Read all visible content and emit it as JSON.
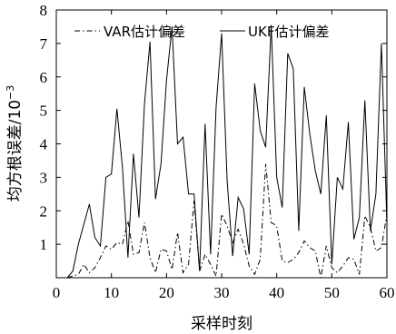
{
  "chart_data": {
    "type": "line",
    "xlabel": "采样时刻",
    "ylabel": "均方根误差/10",
    "ylabel_exponent": "−3",
    "xlim": [
      0,
      60
    ],
    "ylim": [
      0,
      8
    ],
    "xticks": [
      0,
      10,
      20,
      30,
      40,
      50,
      60
    ],
    "yticks": [
      1,
      2,
      3,
      4,
      5,
      6,
      7,
      8
    ],
    "grid": false,
    "legend_position": "top",
    "series": [
      {
        "name": "VAR估计偏差",
        "style": "dash-dot",
        "x": [
          2,
          3,
          4,
          5,
          6,
          7,
          8,
          9,
          10,
          11,
          12,
          13,
          14,
          15,
          16,
          17,
          18,
          19,
          20,
          21,
          22,
          23,
          24,
          25,
          26,
          27,
          28,
          29,
          30,
          31,
          32,
          33,
          34,
          35,
          36,
          37,
          38,
          39,
          40,
          41,
          42,
          43,
          44,
          45,
          46,
          47,
          48,
          49,
          50,
          51,
          52,
          53,
          54,
          55,
          56,
          57,
          58,
          59,
          60
        ],
        "values": [
          0.0,
          0.05,
          0.1,
          0.4,
          0.15,
          0.3,
          0.6,
          0.95,
          0.85,
          1.05,
          1.0,
          1.7,
          0.7,
          0.75,
          1.65,
          0.6,
          0.15,
          0.85,
          0.8,
          0.25,
          1.35,
          0.15,
          0.4,
          2.3,
          0.2,
          0.7,
          0.4,
          0.05,
          1.9,
          1.55,
          1.05,
          1.45,
          1.0,
          0.35,
          0.1,
          0.55,
          3.4,
          1.65,
          1.55,
          0.5,
          0.45,
          0.55,
          0.75,
          1.1,
          0.9,
          0.8,
          0.0,
          0.95,
          0.3,
          0.15,
          0.35,
          0.6,
          0.55,
          0.1,
          1.85,
          1.5,
          0.8,
          0.9,
          1.9
        ]
      },
      {
        "name": "UKF估计偏差",
        "style": "solid",
        "x": [
          2,
          3,
          4,
          5,
          6,
          7,
          8,
          9,
          10,
          11,
          12,
          13,
          14,
          15,
          16,
          17,
          18,
          19,
          20,
          21,
          22,
          23,
          24,
          25,
          26,
          27,
          28,
          29,
          30,
          31,
          32,
          33,
          34,
          35,
          36,
          37,
          38,
          39,
          40,
          41,
          42,
          43,
          44,
          45,
          46,
          47,
          48,
          49,
          50,
          51,
          52,
          53,
          54,
          55,
          56,
          57,
          58,
          59,
          60
        ],
        "values": [
          0.0,
          0.2,
          1.0,
          1.6,
          2.2,
          1.2,
          0.95,
          3.0,
          3.1,
          5.05,
          3.3,
          0.6,
          3.7,
          1.8,
          5.2,
          7.05,
          2.35,
          3.4,
          5.9,
          7.5,
          4.0,
          4.2,
          2.5,
          2.5,
          0.2,
          4.6,
          0.7,
          5.1,
          7.3,
          2.9,
          0.65,
          2.4,
          2.05,
          0.7,
          5.8,
          4.4,
          3.9,
          7.55,
          3.0,
          2.1,
          6.7,
          6.25,
          1.4,
          5.7,
          4.3,
          3.2,
          2.5,
          4.85,
          0.4,
          3.0,
          2.65,
          4.65,
          1.15,
          1.8,
          5.3,
          1.4,
          2.5,
          7.0,
          1.6
        ]
      }
    ]
  }
}
